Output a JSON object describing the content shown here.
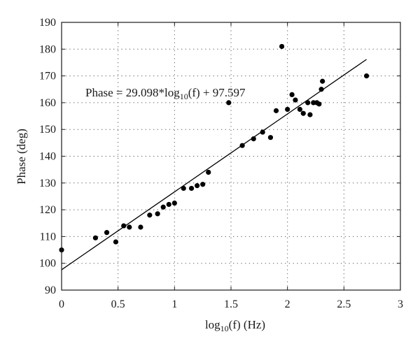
{
  "chart_data": {
    "type": "scatter",
    "xlabel_main": "log",
    "xlabel_sub": "10",
    "xlabel_rest": "(f) (Hz)",
    "ylabel": "Phase (deg)",
    "xlim": [
      0,
      3
    ],
    "ylim": [
      90,
      190
    ],
    "xticks": [
      0,
      0.5,
      1,
      1.5,
      2,
      2.5,
      3
    ],
    "xtick_labels": [
      "0",
      "0.5",
      "1",
      "1.5",
      "2",
      "2.5",
      "3"
    ],
    "yticks": [
      90,
      100,
      110,
      120,
      130,
      140,
      150,
      160,
      170,
      180,
      190
    ],
    "ytick_labels": [
      "90",
      "100",
      "110",
      "120",
      "130",
      "140",
      "150",
      "160",
      "170",
      "180",
      "190"
    ],
    "grid": true,
    "points": [
      {
        "x": 0.0,
        "y": 105
      },
      {
        "x": 0.3,
        "y": 109.5
      },
      {
        "x": 0.4,
        "y": 111.5
      },
      {
        "x": 0.48,
        "y": 108
      },
      {
        "x": 0.55,
        "y": 114
      },
      {
        "x": 0.6,
        "y": 113.5
      },
      {
        "x": 0.7,
        "y": 113.5
      },
      {
        "x": 0.78,
        "y": 118
      },
      {
        "x": 0.85,
        "y": 118.5
      },
      {
        "x": 0.9,
        "y": 121
      },
      {
        "x": 0.95,
        "y": 122
      },
      {
        "x": 1.0,
        "y": 122.5
      },
      {
        "x": 1.08,
        "y": 128
      },
      {
        "x": 1.15,
        "y": 128
      },
      {
        "x": 1.2,
        "y": 129
      },
      {
        "x": 1.25,
        "y": 129.5
      },
      {
        "x": 1.3,
        "y": 134
      },
      {
        "x": 1.48,
        "y": 160
      },
      {
        "x": 1.6,
        "y": 144
      },
      {
        "x": 1.7,
        "y": 146.5
      },
      {
        "x": 1.78,
        "y": 149
      },
      {
        "x": 1.85,
        "y": 147
      },
      {
        "x": 1.9,
        "y": 157
      },
      {
        "x": 1.95,
        "y": 181
      },
      {
        "x": 2.0,
        "y": 157.5
      },
      {
        "x": 2.04,
        "y": 163
      },
      {
        "x": 2.07,
        "y": 161
      },
      {
        "x": 2.11,
        "y": 157.5
      },
      {
        "x": 2.14,
        "y": 156
      },
      {
        "x": 2.18,
        "y": 160
      },
      {
        "x": 2.2,
        "y": 155.5
      },
      {
        "x": 2.23,
        "y": 160
      },
      {
        "x": 2.26,
        "y": 160
      },
      {
        "x": 2.28,
        "y": 159.5
      },
      {
        "x": 2.3,
        "y": 165
      },
      {
        "x": 2.31,
        "y": 168
      },
      {
        "x": 2.7,
        "y": 170
      }
    ],
    "fit": {
      "slope": 29.098,
      "intercept": 97.597,
      "x_range": [
        0,
        2.7
      ],
      "equation_parts": {
        "prefix": "Phase = 29.098*log",
        "sub": "10",
        "suffix": "(f) + 97.597"
      }
    }
  }
}
